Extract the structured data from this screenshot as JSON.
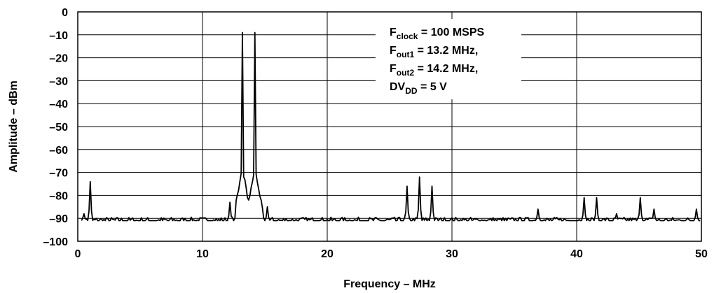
{
  "chart_data": {
    "type": "line",
    "title": "",
    "xlabel": "Frequency – MHz",
    "ylabel": "Amplitude – dBm",
    "xlim": [
      0,
      50
    ],
    "ylim": [
      -100,
      0
    ],
    "x_ticks": [
      0,
      10,
      20,
      30,
      40,
      50
    ],
    "x_tick_labels": [
      "0",
      "10",
      "20",
      "30",
      "40",
      "50"
    ],
    "y_ticks": [
      0,
      -10,
      -20,
      -30,
      -40,
      -50,
      -60,
      -70,
      -80,
      -90,
      -100
    ],
    "y_tick_labels": [
      "0",
      "–10",
      "–20",
      "–30",
      "–40",
      "–50",
      "–60",
      "–70",
      "–80",
      "–90",
      "–100"
    ],
    "grid": true,
    "annotation": {
      "lines": [
        {
          "main": "F",
          "sub": "clock",
          "rest": " = 100 MSPS"
        },
        {
          "main": "F",
          "sub": "out1",
          "rest": " = 13.2 MHz,"
        },
        {
          "main": "F",
          "sub": "out2",
          "rest": " = 14.2 MHz,"
        },
        {
          "main": "DV",
          "sub": "DD",
          "rest": " = 5 V"
        }
      ]
    },
    "series": [
      {
        "color": "#000000",
        "baseline_dbm": -91,
        "peaks": [
          {
            "x": 0.5,
            "y": -88
          },
          {
            "x": 1.0,
            "y": -74
          },
          {
            "x": 12.2,
            "y": -83
          },
          {
            "x": 13.2,
            "y": -9
          },
          {
            "x": 14.2,
            "y": -9
          },
          {
            "x": 15.2,
            "y": -85
          },
          {
            "x": 26.4,
            "y": -76
          },
          {
            "x": 27.4,
            "y": -72
          },
          {
            "x": 28.4,
            "y": -76
          },
          {
            "x": 36.9,
            "y": -86
          },
          {
            "x": 40.6,
            "y": -81
          },
          {
            "x": 41.6,
            "y": -81
          },
          {
            "x": 43.2,
            "y": -88
          },
          {
            "x": 45.1,
            "y": -81
          },
          {
            "x": 46.2,
            "y": -86
          },
          {
            "x": 49.6,
            "y": -86
          }
        ]
      }
    ]
  }
}
